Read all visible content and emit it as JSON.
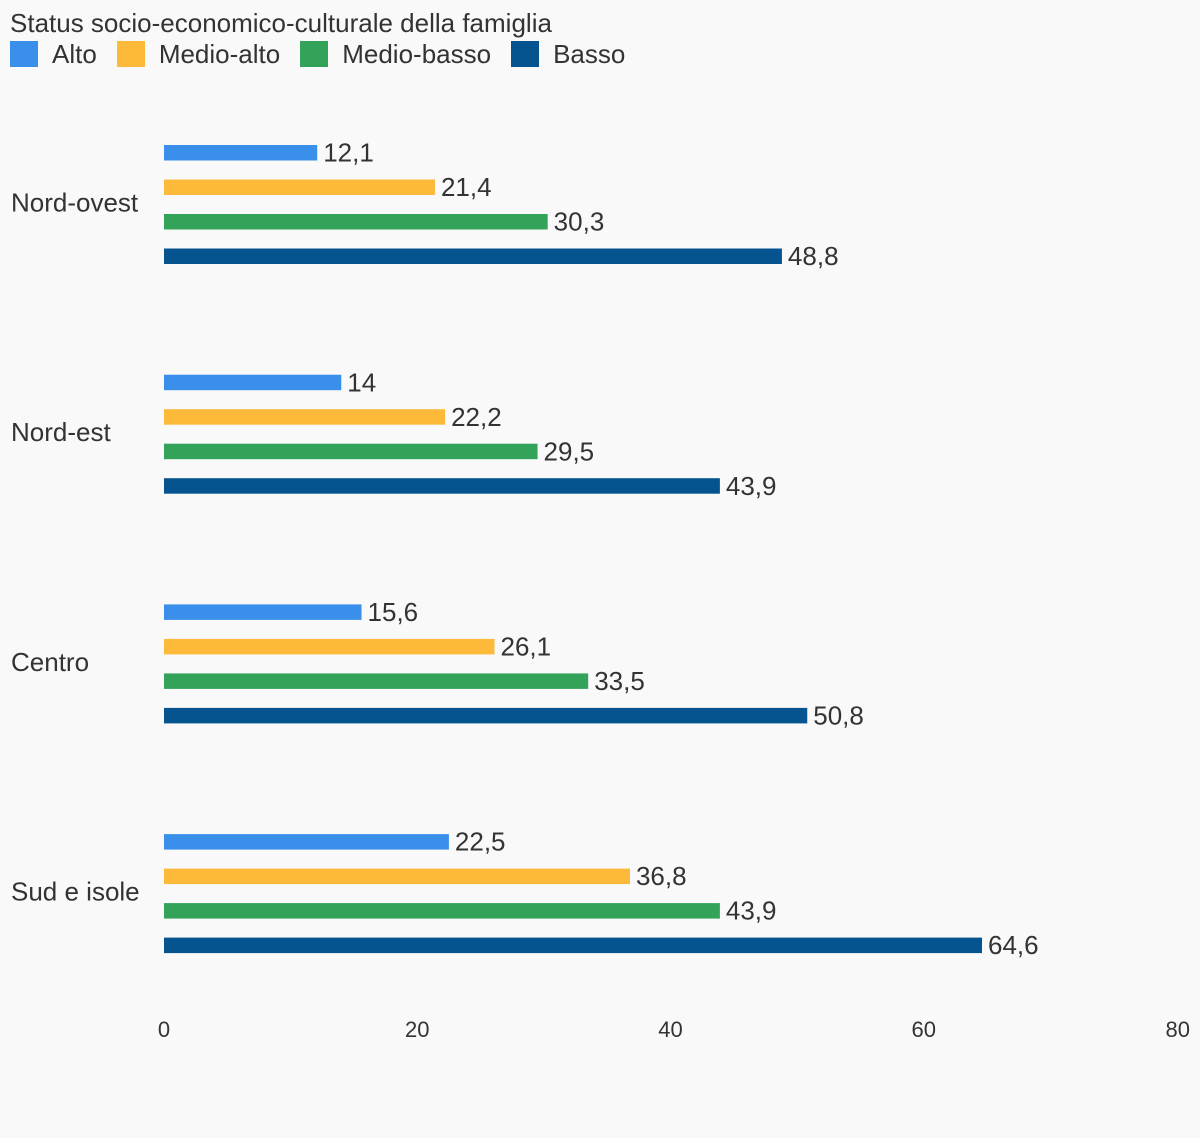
{
  "chart_data": {
    "type": "bar",
    "orientation": "horizontal",
    "legend_title": "Status socio-economico-culturale della famiglia",
    "legend_position": "top-left",
    "categories": [
      "Nord-ovest",
      "Nord-est",
      "Centro",
      "Sud e isole"
    ],
    "series": [
      {
        "name": "Alto",
        "color": "#3a8fea",
        "values": [
          12.1,
          14,
          15.6,
          22.5
        ],
        "labels": [
          "12,1",
          "14",
          "15,6",
          "22,5"
        ]
      },
      {
        "name": "Medio-alto",
        "color": "#fdb93a",
        "values": [
          21.4,
          22.2,
          26.1,
          36.8
        ],
        "labels": [
          "21,4",
          "22,2",
          "26,1",
          "36,8"
        ]
      },
      {
        "name": "Medio-basso",
        "color": "#33a35a",
        "values": [
          30.3,
          29.5,
          33.5,
          43.9
        ],
        "labels": [
          "30,3",
          "29,5",
          "33,5",
          "43,9"
        ]
      },
      {
        "name": "Basso",
        "color": "#05548f",
        "values": [
          48.8,
          43.9,
          50.8,
          64.6
        ],
        "labels": [
          "48,8",
          "43,9",
          "50,8",
          "64,6"
        ]
      }
    ],
    "xlim": [
      0,
      80
    ],
    "xticks": [
      0,
      20,
      40,
      60,
      80
    ],
    "xtick_labels": [
      "0",
      "20",
      "40",
      "60",
      "80"
    ],
    "grid": false
  }
}
